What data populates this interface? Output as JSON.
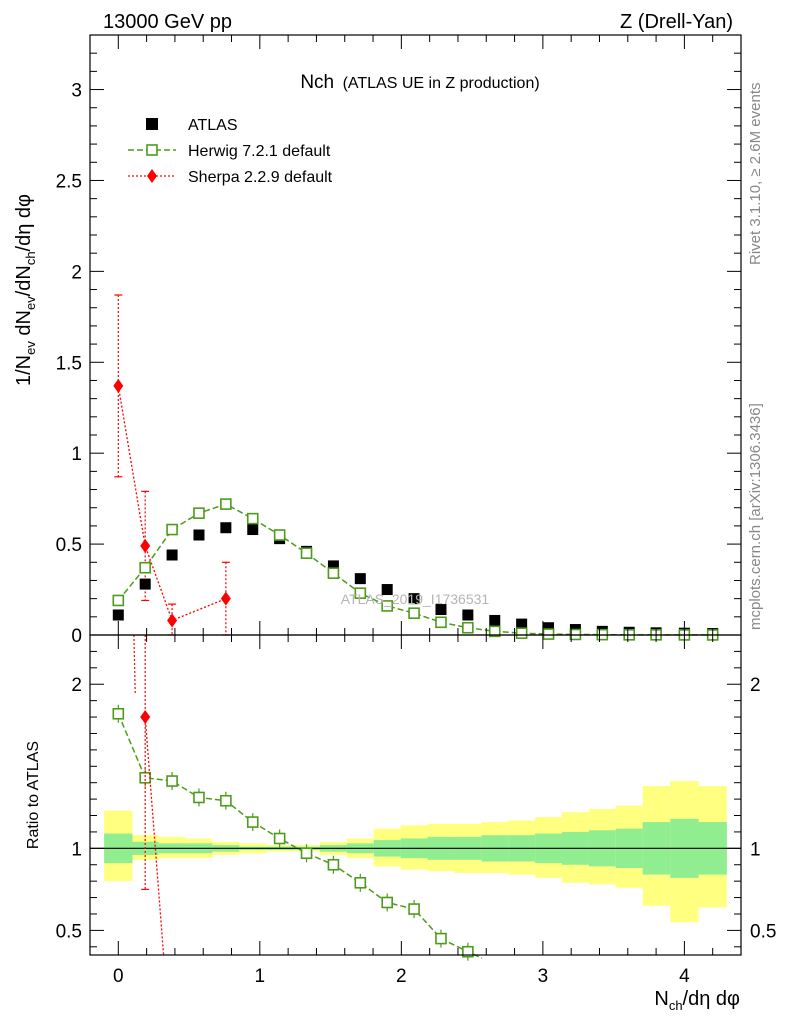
{
  "header": {
    "left": "13000 GeV pp",
    "right": "Z (Drell-Yan)"
  },
  "title": {
    "main": "Nch",
    "sub": "(ATLAS UE in Z production)"
  },
  "side_labels": {
    "rivet": "Rivet 3.1.10, ≥ 2.6M events",
    "mcplots": "mcplots.cern.ch [arXiv:1306.3436]"
  },
  "watermark": "ATLAS_2019_I1736531",
  "axes": {
    "top_ylabel": "1/N_ev dN_ev/dN_ch/dη dφ",
    "bottom_ylabel": "Ratio to ATLAS",
    "xlabel": "N_ch/dη dφ"
  },
  "legend": [
    {
      "label": "ATLAS",
      "color": "#000000",
      "marker": "filled-square"
    },
    {
      "label": "Herwig 7.2.1 default",
      "color": "#4d9b1a",
      "marker": "open-square"
    },
    {
      "label": "Sherpa 2.2.9 default",
      "color": "#ff0000",
      "marker": "filled-diamond"
    }
  ],
  "colors": {
    "atlas": "#000000",
    "herwig": "#4d9b1a",
    "sherpa": "#ff0000",
    "band_inner": "#90ee90",
    "band_outer": "#ffff80"
  },
  "chart_data": [
    {
      "type": "scatter",
      "panel": "main",
      "xlim": [
        -0.2,
        4.4
      ],
      "ylim": [
        0,
        3.3
      ],
      "xticks": [
        0,
        1,
        2,
        3,
        4
      ],
      "yticks": [
        0,
        0.5,
        1,
        1.5,
        2,
        2.5,
        3
      ],
      "ytick_labels": [
        "0",
        "0.5",
        "1",
        "1.5",
        "2",
        "2.5",
        "3"
      ],
      "series": [
        {
          "name": "ATLAS",
          "x": [
            0.0,
            0.19,
            0.38,
            0.57,
            0.76,
            0.95,
            1.14,
            1.33,
            1.52,
            1.71,
            1.9,
            2.09,
            2.28,
            2.47,
            2.66,
            2.85,
            3.04,
            3.23,
            3.42,
            3.61,
            3.8,
            4.0,
            4.2
          ],
          "y": [
            0.11,
            0.28,
            0.44,
            0.55,
            0.59,
            0.58,
            0.53,
            0.46,
            0.38,
            0.31,
            0.25,
            0.2,
            0.14,
            0.11,
            0.08,
            0.06,
            0.04,
            0.03,
            0.02,
            0.015,
            0.012,
            0.01,
            0.008
          ]
        },
        {
          "name": "Herwig 7.2.1 default",
          "x": [
            0.0,
            0.19,
            0.38,
            0.57,
            0.76,
            0.95,
            1.14,
            1.33,
            1.52,
            1.71,
            1.9,
            2.09,
            2.28,
            2.47,
            2.66,
            2.85,
            3.04,
            3.23,
            3.42,
            3.61,
            3.8,
            4.0,
            4.2
          ],
          "y": [
            0.19,
            0.37,
            0.58,
            0.67,
            0.72,
            0.64,
            0.55,
            0.45,
            0.34,
            0.23,
            0.16,
            0.12,
            0.07,
            0.04,
            0.02,
            0.01,
            0.005,
            0.003,
            0.002,
            0.001,
            0.001,
            0.0005,
            0.0003
          ]
        },
        {
          "name": "Sherpa 2.2.9 default",
          "x": [
            0.0,
            0.19,
            0.38,
            0.76
          ],
          "y": [
            1.37,
            0.49,
            0.08,
            0.2
          ],
          "yerr": [
            0.5,
            0.3,
            0.09,
            0.2
          ]
        }
      ]
    },
    {
      "type": "scatter",
      "panel": "ratio",
      "xlim": [
        -0.2,
        4.4
      ],
      "ylim": [
        0.35,
        2.3
      ],
      "xticks": [
        0,
        1,
        2,
        3,
        4
      ],
      "xtick_labels": [
        "0",
        "1",
        "2",
        "3",
        "4"
      ],
      "yticks": [
        0.5,
        1,
        2
      ],
      "ytick_labels": [
        "0.5",
        "1",
        "2"
      ],
      "bands": {
        "edges": [
          -0.1,
          0.1,
          0.285,
          0.475,
          0.665,
          0.855,
          1.045,
          1.235,
          1.425,
          1.615,
          1.805,
          1.995,
          2.185,
          2.375,
          2.565,
          2.755,
          2.945,
          3.135,
          3.325,
          3.515,
          3.705,
          3.9,
          4.1,
          4.3
        ],
        "inner_lo": [
          0.91,
          0.96,
          0.97,
          0.97,
          0.98,
          0.99,
          0.99,
          0.99,
          0.98,
          0.97,
          0.95,
          0.94,
          0.93,
          0.93,
          0.92,
          0.92,
          0.91,
          0.9,
          0.89,
          0.88,
          0.84,
          0.82,
          0.84
        ],
        "inner_hi": [
          1.09,
          1.04,
          1.03,
          1.03,
          1.02,
          1.01,
          1.01,
          1.01,
          1.02,
          1.03,
          1.05,
          1.06,
          1.07,
          1.07,
          1.08,
          1.08,
          1.09,
          1.1,
          1.11,
          1.12,
          1.16,
          1.18,
          1.16
        ],
        "outer_lo": [
          0.8,
          0.93,
          0.94,
          0.94,
          0.96,
          0.97,
          0.98,
          0.98,
          0.96,
          0.94,
          0.89,
          0.87,
          0.86,
          0.85,
          0.85,
          0.84,
          0.82,
          0.79,
          0.78,
          0.76,
          0.65,
          0.55,
          0.64
        ],
        "outer_hi": [
          1.23,
          1.08,
          1.07,
          1.06,
          1.04,
          1.03,
          1.02,
          1.02,
          1.04,
          1.06,
          1.12,
          1.14,
          1.15,
          1.15,
          1.16,
          1.17,
          1.19,
          1.22,
          1.24,
          1.26,
          1.38,
          1.41,
          1.38
        ]
      },
      "series": [
        {
          "name": "Herwig 7.2.1 default",
          "x": [
            0.0,
            0.19,
            0.38,
            0.57,
            0.76,
            0.95,
            1.14,
            1.33,
            1.52,
            1.71,
            1.9,
            2.09,
            2.28,
            2.47
          ],
          "y": [
            1.82,
            1.43,
            1.41,
            1.31,
            1.29,
            1.16,
            1.06,
            0.97,
            0.9,
            0.79,
            0.67,
            0.63,
            0.45,
            0.37
          ]
        },
        {
          "name": "Sherpa 2.2.9 default",
          "x": [
            0.19
          ],
          "y": [
            1.8
          ],
          "yerr": [
            1.05
          ]
        }
      ]
    }
  ]
}
